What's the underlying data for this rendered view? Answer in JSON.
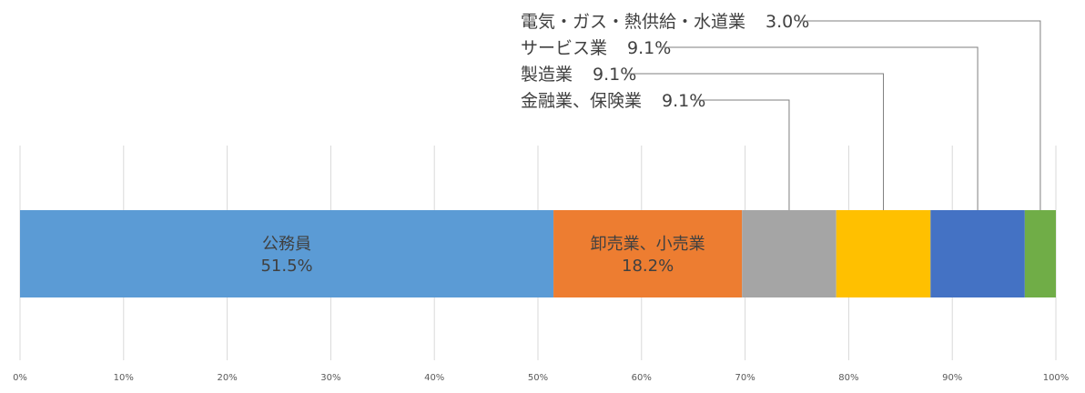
{
  "chart_data": {
    "type": "bar",
    "orientation": "horizontal-stacked-100",
    "title": "",
    "xlabel": "",
    "ylabel": "",
    "xlim": [
      0,
      100
    ],
    "grid": true,
    "x_ticks": [
      "0%",
      "10%",
      "20%",
      "30%",
      "40%",
      "50%",
      "60%",
      "70%",
      "80%",
      "90%",
      "100%"
    ],
    "series": [
      {
        "name": "公務員",
        "value": 51.5,
        "value_label": "51.5%",
        "color": "#5b9bd5",
        "label_position": "inside"
      },
      {
        "name": "卸売業、小売業",
        "value": 18.2,
        "value_label": "18.2%",
        "color": "#ed7d31",
        "label_position": "inside"
      },
      {
        "name": "金融業、保険業",
        "value": 9.1,
        "value_label": "9.1%",
        "color": "#a5a5a5",
        "label_position": "callout"
      },
      {
        "name": "製造業",
        "value": 9.1,
        "value_label": "9.1%",
        "color": "#ffc000",
        "label_position": "callout"
      },
      {
        "name": "サービス業",
        "value": 9.1,
        "value_label": "9.1%",
        "color": "#4472c4",
        "label_position": "callout"
      },
      {
        "name": "電気・ガス・熱供給・水道業",
        "value": 3.0,
        "value_label": "3.0%",
        "color": "#70ad47",
        "label_position": "callout"
      }
    ]
  }
}
